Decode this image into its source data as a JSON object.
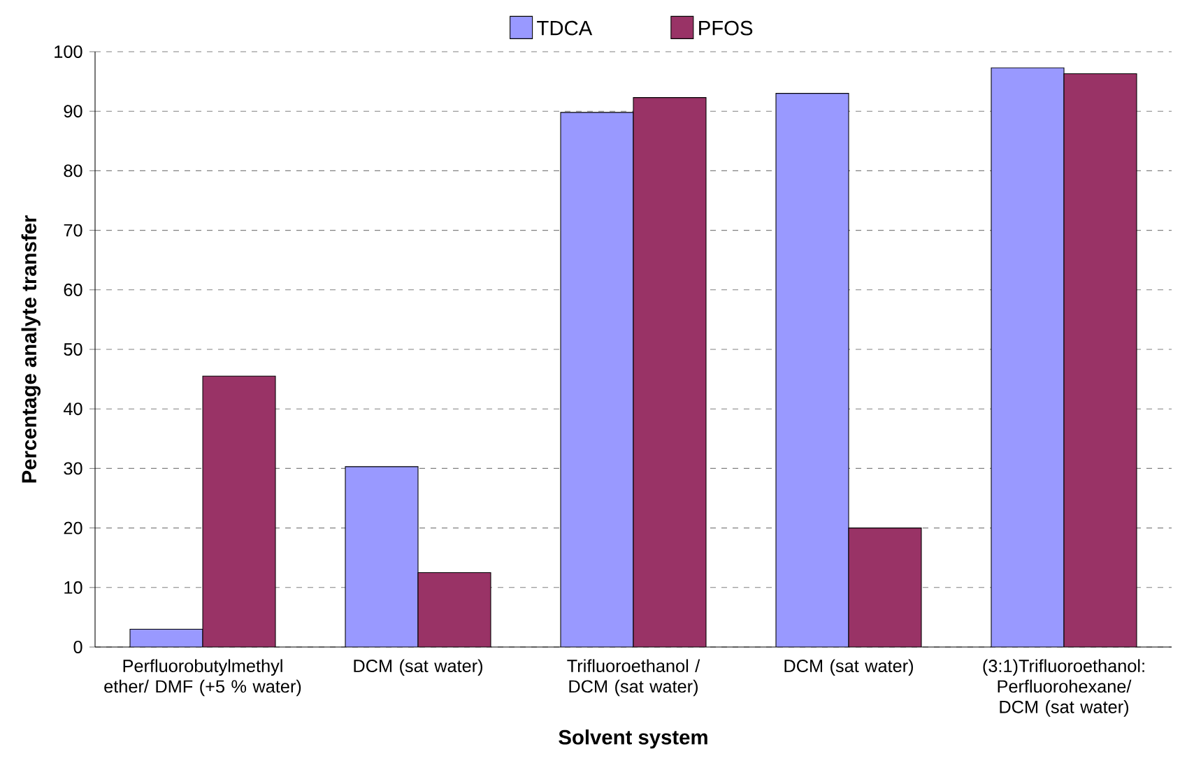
{
  "chart_data": {
    "type": "bar",
    "xlabel": "Solvent system",
    "ylabel": "Percentage analyte transfer",
    "categories": [
      "Perfluorobutylmethyl ether/ DMF (+5 % water)",
      "DCM (sat water)",
      "Trifluoroethanol / DCM (sat water)",
      "DCM (sat water)",
      "(3:1)Trifluoroethanol: Perfluorohexane/ DCM (sat water)"
    ],
    "series": [
      {
        "name": "TDCA",
        "color": "#9999ff",
        "values": [
          3,
          30.3,
          89.8,
          93,
          97.3
        ]
      },
      {
        "name": "PFOS",
        "color": "#993366",
        "values": [
          45.5,
          12.5,
          92.3,
          20,
          96.3
        ]
      }
    ],
    "ylim": [
      0,
      100
    ],
    "yticks": [
      0,
      10,
      20,
      30,
      40,
      50,
      60,
      70,
      80,
      90,
      100
    ],
    "grid": "y",
    "legend": "top"
  }
}
